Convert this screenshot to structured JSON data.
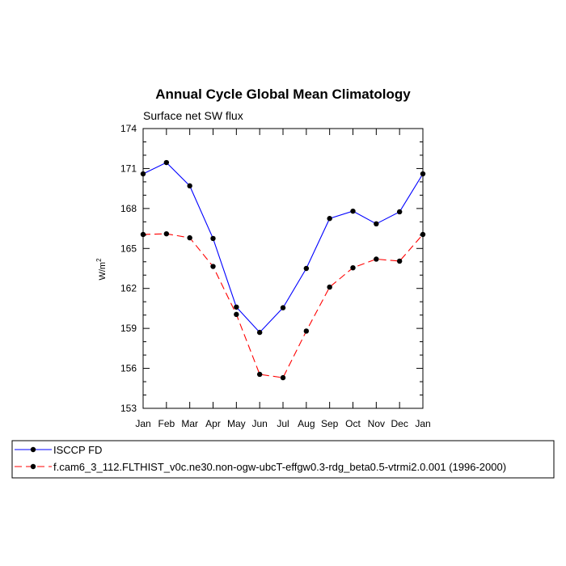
{
  "chart_data": {
    "type": "line",
    "title": "Annual Cycle Global Mean Climatology",
    "subtitle": "Surface net SW flux",
    "ylabel": "W/m",
    "ylabel_sup": "2",
    "xlabel": "",
    "categories": [
      "Jan",
      "Feb",
      "Mar",
      "Apr",
      "May",
      "Jun",
      "Jul",
      "Aug",
      "Sep",
      "Oct",
      "Nov",
      "Dec",
      "Jan"
    ],
    "ylim": [
      153,
      174
    ],
    "yticks": [
      153,
      156,
      159,
      162,
      165,
      168,
      171,
      174
    ],
    "ytick_labels": [
      "153",
      "156",
      "159",
      "162",
      "165",
      "168",
      "171",
      "174"
    ],
    "series": [
      {
        "name": "ISCCP FD",
        "color": "#0000ff",
        "dash": "solid",
        "values": [
          170.6,
          171.45,
          169.7,
          165.75,
          160.6,
          158.7,
          160.55,
          163.5,
          167.25,
          167.8,
          166.85,
          167.75,
          170.6
        ]
      },
      {
        "name": "f.cam6_3_112.FLTHIST_v0c.ne30.non-ogw-ubcT-effgw0.3-rdg_beta0.5-vtrmi2.0.001 (1996-2000)",
        "color": "#ff0000",
        "dash": "dashed",
        "values": [
          166.05,
          166.1,
          165.8,
          163.65,
          160.05,
          155.55,
          155.3,
          158.8,
          162.1,
          163.55,
          164.2,
          164.05,
          166.05
        ]
      }
    ],
    "legend_position": "bottom"
  }
}
